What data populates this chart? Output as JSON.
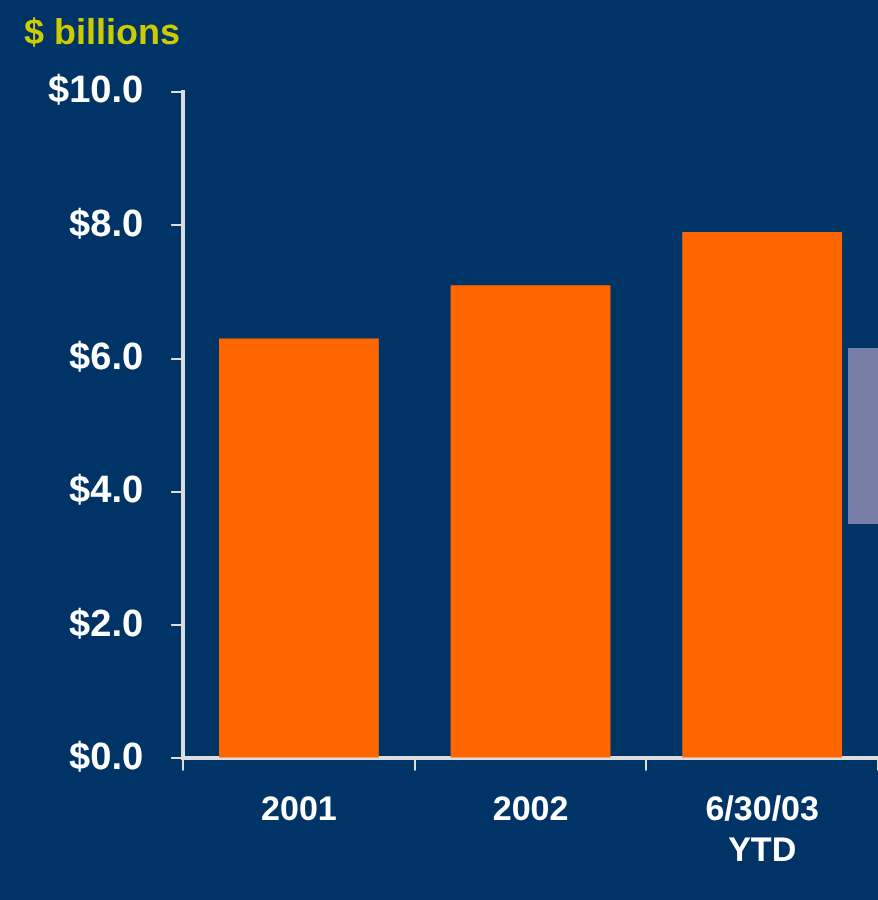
{
  "chart_data": {
    "type": "bar",
    "ylabel": "$ billions",
    "categories": [
      "2001",
      "2002",
      "6/30/03\nYTD"
    ],
    "values": [
      6.3,
      7.1,
      7.9
    ],
    "color": "#ff6600",
    "ylim": [
      0,
      10
    ],
    "yticks": [
      {
        "value": 0,
        "label": "$0.0"
      },
      {
        "value": 2,
        "label": "$2.0"
      },
      {
        "value": 4,
        "label": "$4.0"
      },
      {
        "value": 6,
        "label": "$6.0"
      },
      {
        "value": 8,
        "label": "$8.0"
      },
      {
        "value": 10,
        "label": "$10.0"
      }
    ],
    "grid": false,
    "legend": false
  }
}
